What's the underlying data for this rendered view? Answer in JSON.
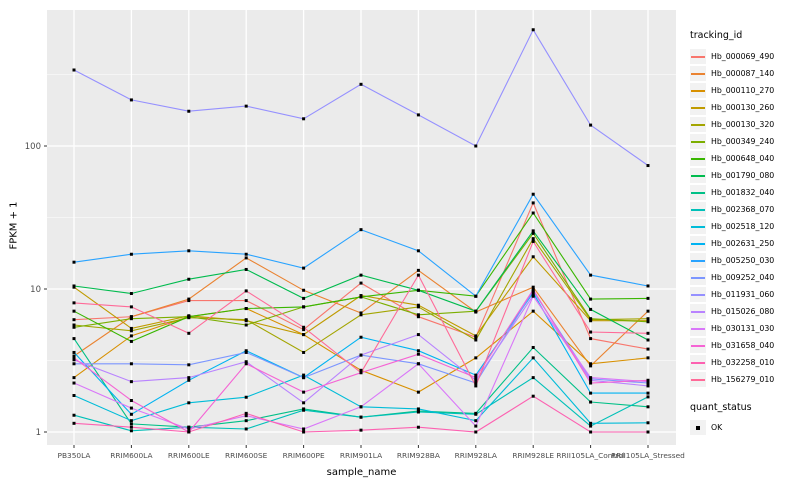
{
  "chart_data": {
    "type": "line",
    "title": "",
    "xlabel": "sample_name",
    "ylabel": "FPKM + 1",
    "y_scale": "log10",
    "y_ticks": [
      "1",
      "10",
      "100"
    ],
    "y_minor_gridlines": [
      3.1623,
      31.623,
      316.23
    ],
    "ylim": [
      0.82,
      890
    ],
    "grid": "on",
    "panel_bg": "#EBEBEB",
    "grid_color": "#FFFFFF",
    "tick_label_color": "#4D4D4D",
    "point_marker": "black-square",
    "legend_position": "right",
    "legend_title": "tracking_id",
    "quant_legend": {
      "title": "quant_status",
      "items": [
        {
          "label": "OK",
          "marker": "black-square"
        }
      ]
    },
    "categories": [
      "PB350LA",
      "RRIM600LA",
      "RRIM600LE",
      "RRIM600SE",
      "RRIM600PE",
      "RRIM901LA",
      "RRIM928BA",
      "RRIM928LA",
      "RRIM928LE",
      "RRII105LA_Control",
      "RRII105LA_Stressed"
    ],
    "series": [
      {
        "name": "Hb_000069_490",
        "color": "#F8766D",
        "values": [
          6.1,
          6.4,
          8.3,
          8.3,
          5.2,
          11,
          6.4,
          4.6,
          40,
          4.5,
          3.8
        ]
      },
      {
        "name": "Hb_000087_140",
        "color": "#EA8331",
        "values": [
          3.4,
          6.4,
          8.5,
          16.5,
          9.8,
          6.8,
          13.5,
          6.9,
          10.3,
          2.9,
          7.0
        ]
      },
      {
        "name": "Hb_000110_270",
        "color": "#D89000",
        "values": [
          2.4,
          4.7,
          6.4,
          7.3,
          4.8,
          2.7,
          1.9,
          3.3,
          7.0,
          3.0,
          3.3
        ]
      },
      {
        "name": "Hb_000130_260",
        "color": "#C09B00",
        "values": [
          10.3,
          5.3,
          6.5,
          6.0,
          4.8,
          9.0,
          7.7,
          4.7,
          16.8,
          6.0,
          6.0
        ]
      },
      {
        "name": "Hb_000130_320",
        "color": "#A3A500",
        "values": [
          5.6,
          5.1,
          6.3,
          6.1,
          3.6,
          6.6,
          7.5,
          4.4,
          22.5,
          6.1,
          6.2
        ]
      },
      {
        "name": "Hb_000349_240",
        "color": "#7CAE00",
        "values": [
          5.4,
          6.2,
          6.4,
          5.6,
          7.5,
          8.8,
          6.6,
          7.0,
          24.5,
          6.2,
          5.9
        ]
      },
      {
        "name": "Hb_000648_040",
        "color": "#39B600",
        "values": [
          7.0,
          4.3,
          6.4,
          7.3,
          7.5,
          8.8,
          9.8,
          8.9,
          34,
          8.5,
          8.6
        ]
      },
      {
        "name": "Hb_001790_080",
        "color": "#00BB4E",
        "values": [
          10.5,
          9.3,
          11.7,
          13.7,
          8.6,
          12.5,
          9.8,
          7.0,
          25.5,
          7.2,
          4.4
        ]
      },
      {
        "name": "Hb_001832_040",
        "color": "#00C087",
        "values": [
          4.5,
          1.14,
          1.08,
          1.2,
          1.45,
          1.27,
          1.4,
          1.35,
          3.9,
          1.62,
          1.5
        ]
      },
      {
        "name": "Hb_002368_070",
        "color": "#00C0B8",
        "values": [
          1.31,
          1.02,
          1.08,
          1.05,
          1.42,
          1.27,
          1.38,
          1.33,
          2.4,
          1.1,
          1.76
        ]
      },
      {
        "name": "Hb_002518_120",
        "color": "#00BCD8",
        "values": [
          1.8,
          1.2,
          1.6,
          1.75,
          2.5,
          1.5,
          1.45,
          1.2,
          3.3,
          1.15,
          1.16
        ]
      },
      {
        "name": "Hb_002631_250",
        "color": "#00B3F2",
        "values": [
          3.6,
          1.33,
          2.3,
          3.7,
          2.4,
          4.6,
          3.7,
          2.5,
          9.4,
          1.87,
          1.87
        ]
      },
      {
        "name": "Hb_005250_030",
        "color": "#29A3FF",
        "values": [
          15.4,
          17.5,
          18.5,
          17.5,
          14,
          26,
          18.5,
          8.9,
          46,
          12.5,
          10.5
        ]
      },
      {
        "name": "Hb_009252_040",
        "color": "#7C96FF",
        "values": [
          3.0,
          3.0,
          2.95,
          3.6,
          2.4,
          3.45,
          3.0,
          2.2,
          9.7,
          2.35,
          2.2
        ]
      },
      {
        "name": "Hb_011931_060",
        "color": "#9590FF",
        "values": [
          340,
          210,
          175,
          190,
          155,
          270,
          165,
          100,
          650,
          140,
          73
        ]
      },
      {
        "name": "Hb_015026_080",
        "color": "#B983FF",
        "values": [
          3.2,
          2.25,
          2.4,
          3.1,
          1.6,
          3.45,
          4.8,
          2.3,
          9.0,
          2.3,
          2.1
        ]
      },
      {
        "name": "Hb_030131_030",
        "color": "#D977F9",
        "values": [
          2.2,
          1.47,
          1.05,
          1.3,
          1.05,
          1.5,
          3.0,
          1.1,
          8.9,
          2.4,
          2.25
        ]
      },
      {
        "name": "Hb_031658_040",
        "color": "#F564D4",
        "values": [
          3.3,
          1.66,
          1.0,
          3.0,
          1.9,
          2.6,
          3.5,
          2.4,
          9.9,
          2.2,
          2.3
        ]
      },
      {
        "name": "Hb_032258_010",
        "color": "#FD61B1",
        "values": [
          1.15,
          1.08,
          1.0,
          1.35,
          1.0,
          1.03,
          1.08,
          1.0,
          1.78,
          1.0,
          1.0
        ]
      },
      {
        "name": "Hb_156279_010",
        "color": "#FF6A98",
        "values": [
          8.0,
          7.5,
          4.9,
          9.7,
          5.4,
          2.6,
          12.5,
          2.1,
          21.5,
          5.0,
          4.9
        ]
      }
    ]
  }
}
